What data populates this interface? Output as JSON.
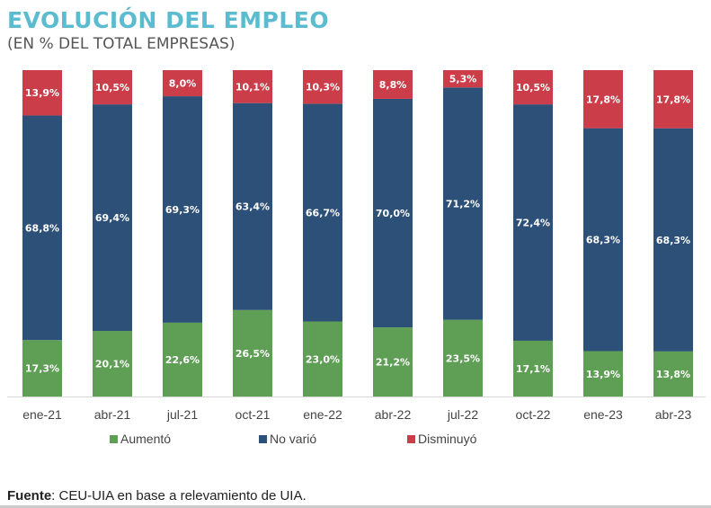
{
  "chart_data": {
    "type": "bar",
    "stacked": true,
    "title": "EVOLUCIÓN DEL EMPLEO",
    "subtitle": "(EN % DEL TOTAL EMPRESAS)",
    "categories": [
      "ene-21",
      "abr-21",
      "jul-21",
      "oct-21",
      "ene-22",
      "abr-22",
      "jul-22",
      "oct-22",
      "ene-23",
      "abr-23"
    ],
    "series": [
      {
        "name": "Aumentó",
        "color": "#5e9e55",
        "values": [
          17.3,
          20.1,
          22.6,
          26.5,
          23.0,
          21.2,
          23.5,
          17.1,
          13.9,
          13.8
        ],
        "labels": [
          "17,3%",
          "20,1%",
          "22,6%",
          "26,5%",
          "23,0%",
          "21,2%",
          "23,5%",
          "17,1%",
          "13,9%",
          "13,8%"
        ]
      },
      {
        "name": "No varió",
        "color": "#2c5077",
        "values": [
          68.8,
          69.4,
          69.3,
          63.4,
          66.7,
          70.0,
          71.2,
          72.4,
          68.3,
          68.3
        ],
        "labels": [
          "68,8%",
          "69,4%",
          "69,3%",
          "63,4%",
          "66,7%",
          "70,0%",
          "71,2%",
          "72,4%",
          "68,3%",
          "68,3%"
        ]
      },
      {
        "name": "Disminuyó",
        "color": "#cc3d4a",
        "values": [
          13.9,
          10.5,
          8.0,
          10.1,
          10.3,
          8.8,
          5.3,
          10.5,
          17.8,
          17.8
        ],
        "labels": [
          "13,9%",
          "10,5%",
          "8,0%",
          "10,1%",
          "10,3%",
          "8,8%",
          "5,3%",
          "10,5%",
          "17,8%",
          "17,8%"
        ]
      }
    ],
    "ylim": [
      0,
      100
    ],
    "grid": false,
    "legend_position": "bottom"
  },
  "source": {
    "label": "Fuente",
    "text": ": CEU-UIA en base a relevamiento de UIA."
  }
}
